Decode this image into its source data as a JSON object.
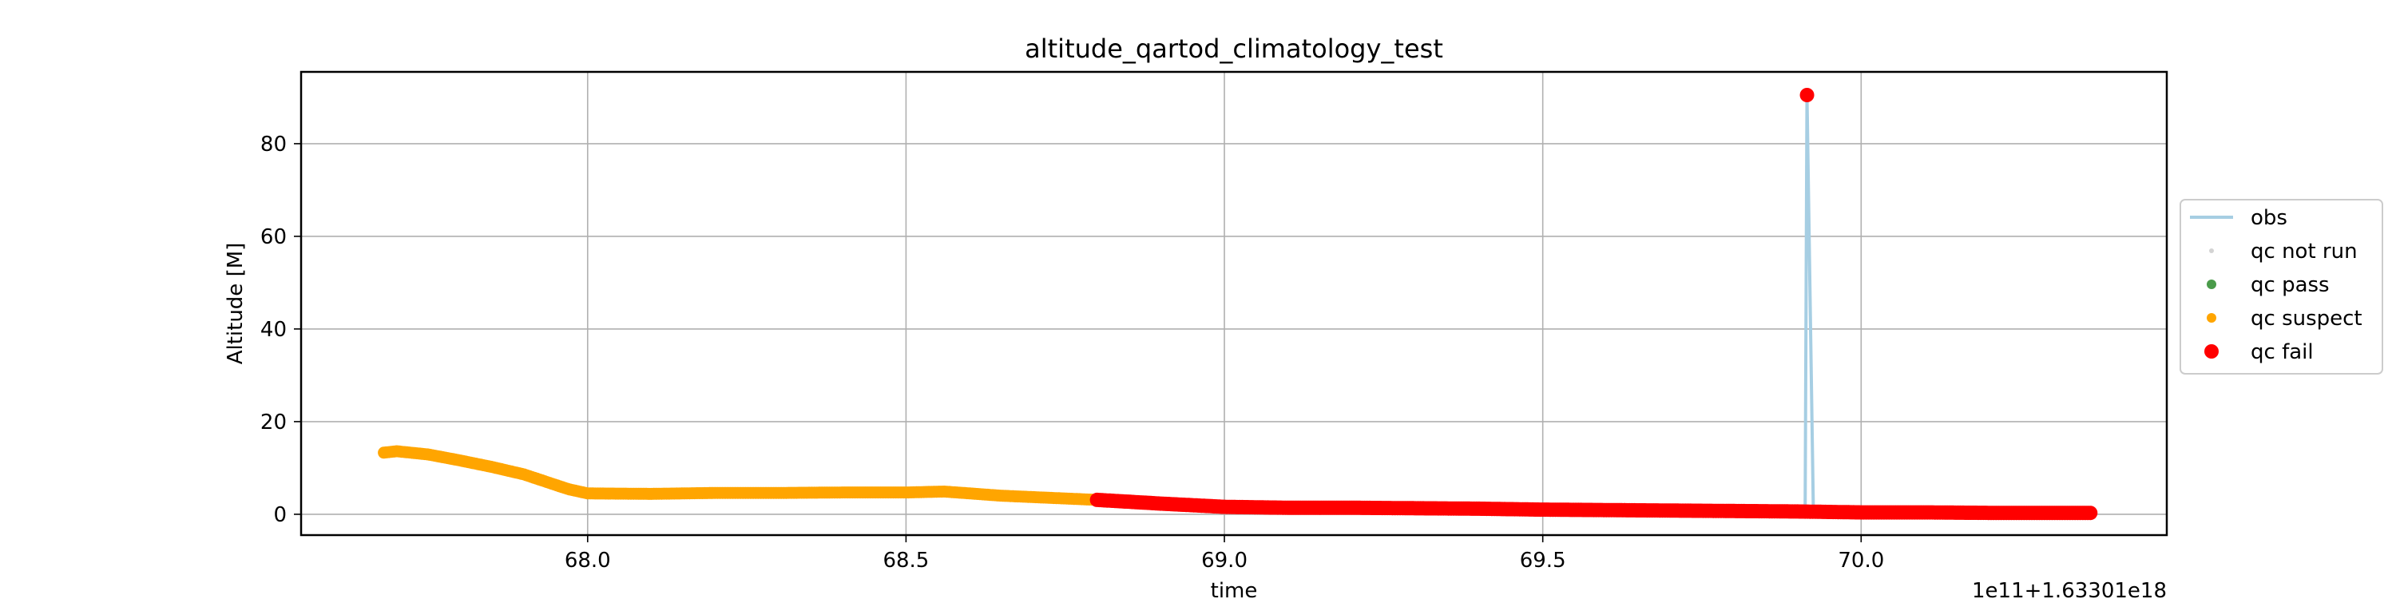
{
  "chart_data": {
    "type": "scatter",
    "title": "altitude_qartod_climatology_test",
    "xlabel": "time",
    "ylabel": "Altitude [M]",
    "offset_label": "1e11+1.63301e18",
    "xlim": [
      67.55,
      70.48
    ],
    "ylim": [
      -4.5,
      95.5
    ],
    "xticks": [
      68.0,
      68.5,
      69.0,
      69.5,
      70.0
    ],
    "xtick_labels": [
      "68.0",
      "68.5",
      "69.0",
      "69.5",
      "70.0"
    ],
    "yticks": [
      0,
      20,
      40,
      60,
      80
    ],
    "ytick_labels": [
      "0",
      "20",
      "40",
      "60",
      "80"
    ],
    "grid": true,
    "legend_position": "outside-right",
    "legend": [
      {
        "label": "obs",
        "kind": "line",
        "color": "#a6cee3"
      },
      {
        "label": "qc not run",
        "kind": "point-small",
        "color": "#d3d3d3"
      },
      {
        "label": "qc pass",
        "kind": "point",
        "color": "#4a9b4a"
      },
      {
        "label": "qc suspect",
        "kind": "point",
        "color": "#ffa500"
      },
      {
        "label": "qc fail",
        "kind": "point-large",
        "color": "#ff0000"
      }
    ],
    "series": [
      {
        "key": "obs",
        "kind": "line",
        "color": "#a6cee3",
        "points": [
          [
            67.68,
            13.3
          ],
          [
            67.7,
            13.6
          ],
          [
            67.75,
            12.9
          ],
          [
            67.8,
            11.6
          ],
          [
            67.85,
            10.2
          ],
          [
            67.9,
            8.6
          ],
          [
            67.97,
            5.4
          ],
          [
            68.0,
            4.5
          ],
          [
            68.1,
            4.4
          ],
          [
            68.2,
            4.6
          ],
          [
            68.3,
            4.6
          ],
          [
            68.4,
            4.7
          ],
          [
            68.5,
            4.7
          ],
          [
            68.56,
            4.9
          ],
          [
            68.65,
            4.0
          ],
          [
            68.8,
            3.1
          ],
          [
            68.9,
            2.3
          ],
          [
            69.0,
            1.6
          ],
          [
            69.1,
            1.4
          ],
          [
            69.2,
            1.4
          ],
          [
            69.3,
            1.3
          ],
          [
            69.4,
            1.2
          ],
          [
            69.5,
            1.0
          ],
          [
            69.6,
            0.9
          ],
          [
            69.7,
            0.8
          ],
          [
            69.8,
            0.7
          ],
          [
            69.9,
            0.6
          ],
          [
            69.912,
            0.6
          ],
          [
            69.915,
            90.5
          ],
          [
            69.925,
            0.5
          ],
          [
            70.0,
            0.4
          ],
          [
            70.1,
            0.4
          ],
          [
            70.2,
            0.3
          ],
          [
            70.36,
            0.3
          ]
        ]
      },
      {
        "key": "qc_suspect",
        "kind": "points",
        "color": "#ffa500",
        "step": 0.004,
        "segments": [
          {
            "x": [
              67.68,
              67.7,
              67.75,
              67.8,
              67.85,
              67.9,
              67.97,
              68.0,
              68.1,
              68.2,
              68.3,
              68.4,
              68.5,
              68.56,
              68.65,
              68.8
            ],
            "y": [
              13.3,
              13.6,
              12.9,
              11.6,
              10.2,
              8.6,
              5.4,
              4.5,
              4.4,
              4.6,
              4.6,
              4.7,
              4.7,
              4.9,
              4.0,
              3.1
            ]
          }
        ]
      },
      {
        "key": "qc_fail",
        "kind": "points",
        "color": "#ff0000",
        "step": 0.004,
        "segments": [
          {
            "x": [
              68.8,
              68.9,
              69.0,
              69.1,
              69.2,
              69.3,
              69.4,
              69.5,
              69.6,
              69.7,
              69.8,
              69.9,
              70.0,
              70.1,
              70.2,
              70.36
            ],
            "y": [
              3.1,
              2.3,
              1.6,
              1.4,
              1.4,
              1.3,
              1.2,
              1.0,
              0.9,
              0.8,
              0.7,
              0.6,
              0.4,
              0.4,
              0.3,
              0.3
            ]
          }
        ],
        "outliers": [
          [
            69.915,
            90.5
          ]
        ]
      }
    ]
  }
}
